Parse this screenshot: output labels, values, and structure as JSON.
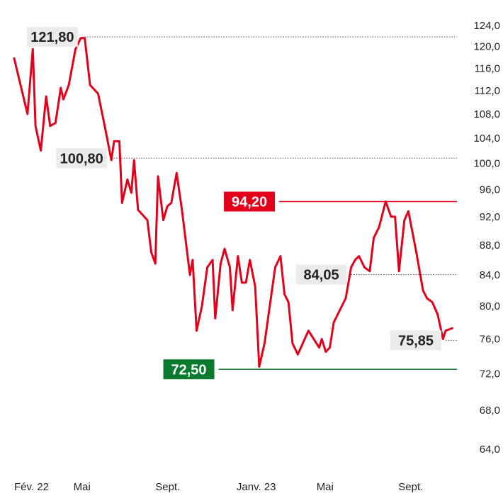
{
  "chart_data": {
    "type": "line",
    "title": "",
    "xlabel": "",
    "ylabel": "",
    "ylim": [
      62,
      124
    ],
    "y_scale": "log",
    "y_ticks": [
      {
        "v": 124,
        "label": "124,0"
      },
      {
        "v": 120,
        "label": "120,0"
      },
      {
        "v": 116,
        "label": "116,0"
      },
      {
        "v": 112,
        "label": "112,0"
      },
      {
        "v": 108,
        "label": "108,0"
      },
      {
        "v": 104,
        "label": "104,0"
      },
      {
        "v": 100,
        "label": "100,0"
      },
      {
        "v": 96,
        "label": "96,0"
      },
      {
        "v": 92,
        "label": "92,0"
      },
      {
        "v": 88,
        "label": "88,0"
      },
      {
        "v": 84,
        "label": "84,0"
      },
      {
        "v": 80,
        "label": "80,0"
      },
      {
        "v": 76,
        "label": "76,0"
      },
      {
        "v": 72,
        "label": "72,0"
      },
      {
        "v": 68,
        "label": "68,0"
      },
      {
        "v": 64,
        "label": "64,0"
      }
    ],
    "xlim": [
      "2022-02-01",
      "2023-11-28"
    ],
    "x_ticks": [
      {
        "date": "2022-02-01",
        "label": "Fév. 22"
      },
      {
        "date": "2022-05-01",
        "label": "Mai"
      },
      {
        "date": "2022-09-01",
        "label": "Sept."
      },
      {
        "date": "2023-01-01",
        "label": "Janv. 23"
      },
      {
        "date": "2023-05-01",
        "label": "Mai"
      },
      {
        "date": "2023-09-01",
        "label": "Sept."
      }
    ],
    "series": [
      {
        "color": "#e3001b",
        "points": [
          [
            "2022-02-01",
            117.8
          ],
          [
            "2022-02-21",
            108.0
          ],
          [
            "2022-02-29",
            119.5
          ],
          [
            "2022-03-05",
            106.0
          ],
          [
            "2022-03-13",
            102.0
          ],
          [
            "2022-03-21",
            111.0
          ],
          [
            "2022-03-27",
            106.0
          ],
          [
            "2022-04-04",
            106.5
          ],
          [
            "2022-04-12",
            112.5
          ],
          [
            "2022-04-16",
            110.5
          ],
          [
            "2022-04-24",
            113.0
          ],
          [
            "2022-05-04",
            119.5
          ],
          [
            "2022-05-12",
            121.6
          ],
          [
            "2022-05-18",
            121.6
          ],
          [
            "2022-05-26",
            113.0
          ],
          [
            "2022-06-07",
            111.5
          ],
          [
            "2022-06-17",
            106.0
          ],
          [
            "2022-06-27",
            100.5
          ],
          [
            "2022-07-01",
            103.5
          ],
          [
            "2022-07-09",
            103.5
          ],
          [
            "2022-07-13",
            94.0
          ],
          [
            "2022-07-21",
            97.5
          ],
          [
            "2022-07-27",
            95.5
          ],
          [
            "2022-07-31",
            100.5
          ],
          [
            "2022-08-06",
            93.0
          ],
          [
            "2022-08-20",
            91.5
          ],
          [
            "2022-08-26",
            87.0
          ],
          [
            "2022-09-01",
            85.5
          ],
          [
            "2022-09-05",
            98.0
          ],
          [
            "2022-09-13",
            91.5
          ],
          [
            "2022-09-19",
            93.5
          ],
          [
            "2022-09-25",
            94.0
          ],
          [
            "2022-10-03",
            98.5
          ],
          [
            "2022-10-11",
            93.0
          ],
          [
            "2022-10-23",
            84.0
          ],
          [
            "2022-10-27",
            86.0
          ],
          [
            "2022-11-02",
            77.0
          ],
          [
            "2022-11-10",
            80.0
          ],
          [
            "2022-11-18",
            85.0
          ],
          [
            "2022-11-26",
            86.0
          ],
          [
            "2022-11-30",
            78.5
          ],
          [
            "2022-12-08",
            85.5
          ],
          [
            "2022-12-14",
            87.5
          ],
          [
            "2022-12-22",
            85.0
          ],
          [
            "2022-12-26",
            79.5
          ],
          [
            "2023-01-03",
            86.5
          ],
          [
            "2023-01-09",
            83.0
          ],
          [
            "2023-01-15",
            83.0
          ],
          [
            "2023-01-21",
            86.0
          ],
          [
            "2023-01-29",
            82.5
          ],
          [
            "2023-02-04",
            72.8
          ],
          [
            "2023-02-12",
            75.5
          ],
          [
            "2023-02-28",
            85.0
          ],
          [
            "2023-03-08",
            86.5
          ],
          [
            "2023-03-14",
            81.5
          ],
          [
            "2023-03-20",
            80.5
          ],
          [
            "2023-03-26",
            75.5
          ],
          [
            "2023-04-03",
            74.2
          ],
          [
            "2023-04-19",
            77.0
          ],
          [
            "2023-05-01",
            75.5
          ],
          [
            "2023-05-05",
            75.0
          ],
          [
            "2023-05-09",
            76.0
          ],
          [
            "2023-05-15",
            74.5
          ],
          [
            "2023-05-21",
            75.0
          ],
          [
            "2023-05-27",
            78.0
          ],
          [
            "2023-06-14",
            81.0
          ],
          [
            "2023-06-22",
            85.0
          ],
          [
            "2023-06-28",
            86.0
          ],
          [
            "2023-07-04",
            86.5
          ],
          [
            "2023-07-12",
            85.0
          ],
          [
            "2023-07-20",
            84.5
          ],
          [
            "2023-07-26",
            89.0
          ],
          [
            "2023-08-03",
            90.5
          ],
          [
            "2023-08-13",
            94.2
          ],
          [
            "2023-08-21",
            92.0
          ],
          [
            "2023-08-27",
            92.0
          ],
          [
            "2023-09-02",
            84.5
          ],
          [
            "2023-09-10",
            91.5
          ],
          [
            "2023-09-16",
            92.8
          ],
          [
            "2023-09-28",
            87.0
          ],
          [
            "2023-10-08",
            82.0
          ],
          [
            "2023-10-14",
            81.0
          ],
          [
            "2023-10-22",
            80.5
          ],
          [
            "2023-10-30",
            79.0
          ],
          [
            "2023-11-07",
            76.0
          ],
          [
            "2023-11-11",
            77.0
          ],
          [
            "2023-11-21",
            77.3
          ]
        ]
      }
    ],
    "reference_lines": [
      {
        "value": 121.8,
        "label": "121,80",
        "style": "dotted",
        "label_style": "plain",
        "start": "2022-05-14"
      },
      {
        "value": 100.8,
        "label": "100,80",
        "style": "dotted",
        "label_style": "plain",
        "start": "2022-06-27"
      },
      {
        "value": 94.2,
        "label": "94,20",
        "style": "solid",
        "color": "#e3001b",
        "label_style": "high",
        "start": "2023-03-06"
      },
      {
        "value": 84.05,
        "label": "84,05",
        "style": "dotted",
        "label_style": "plain",
        "start": "2023-06-22"
      },
      {
        "value": 75.85,
        "label": "75,85",
        "style": "dotted",
        "label_style": "plain",
        "start": "2023-11-11"
      },
      {
        "value": 72.5,
        "label": "72,50",
        "style": "solid",
        "color": "#0a7a2f",
        "label_style": "low",
        "start": "2022-12-05"
      }
    ],
    "colors": {
      "high_bg": "#e3001b",
      "low_bg": "#0a7a2f",
      "plain_bg": "#ebebeb",
      "plain_text": "#222222",
      "badge_text": "#ffffff"
    }
  }
}
